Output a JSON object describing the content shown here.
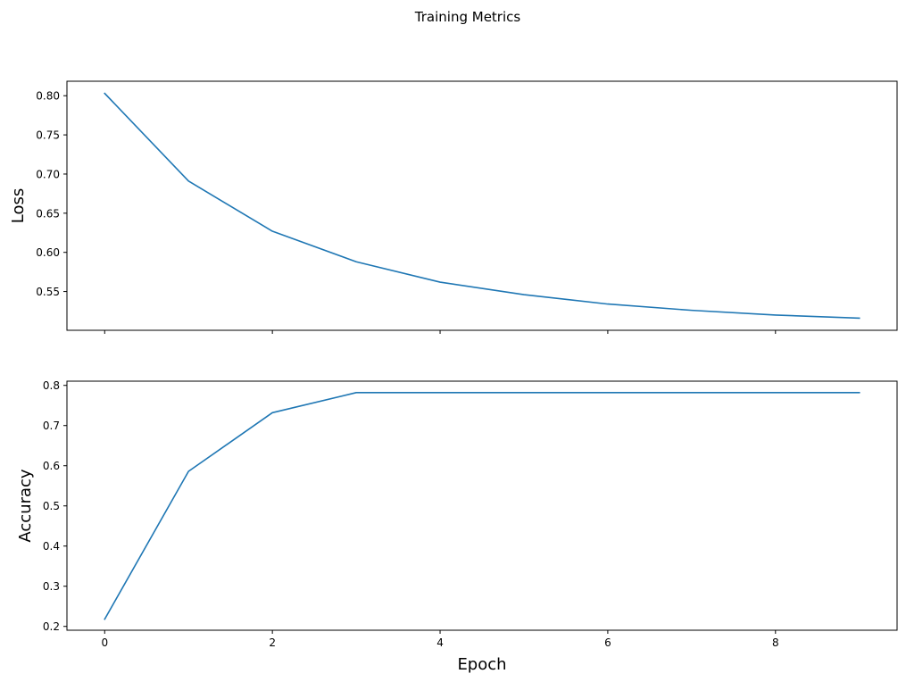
{
  "figure": {
    "suptitle": "Training Metrics"
  },
  "colors": {
    "line": "#1f77b4"
  },
  "chart_data": [
    {
      "type": "line",
      "title": "",
      "xlabel": "",
      "ylabel": "Loss",
      "xlim": [
        -0.45,
        9.45
      ],
      "ylim": [
        0.5005,
        0.8185
      ],
      "xticks": [
        0,
        2,
        4,
        6,
        8
      ],
      "xtick_labels": [
        "",
        "",
        "",
        "",
        ""
      ],
      "yticks": [
        0.55,
        0.6,
        0.65,
        0.7,
        0.75,
        0.8
      ],
      "ytick_labels": [
        "0.55",
        "0.60",
        "0.65",
        "0.70",
        "0.75",
        "0.80"
      ],
      "grid": false,
      "x": [
        0,
        1,
        2,
        3,
        4,
        5,
        6,
        7,
        8,
        9
      ],
      "series": [
        {
          "values": [
            0.803,
            0.691,
            0.627,
            0.588,
            0.562,
            0.546,
            0.534,
            0.526,
            0.52,
            0.516
          ]
        }
      ]
    },
    {
      "type": "line",
      "title": "",
      "xlabel": "Epoch",
      "ylabel": "Accuracy",
      "xlim": [
        -0.45,
        9.45
      ],
      "ylim": [
        0.1905,
        0.8105
      ],
      "xticks": [
        0,
        2,
        4,
        6,
        8
      ],
      "xtick_labels": [
        "0",
        "2",
        "4",
        "6",
        "8"
      ],
      "yticks": [
        0.2,
        0.3,
        0.4,
        0.5,
        0.6,
        0.7,
        0.8
      ],
      "ytick_labels": [
        "0.2",
        "0.3",
        "0.4",
        "0.5",
        "0.6",
        "0.7",
        "0.8"
      ],
      "grid": false,
      "x": [
        0,
        1,
        2,
        3,
        4,
        5,
        6,
        7,
        8,
        9
      ],
      "series": [
        {
          "values": [
            0.218,
            0.586,
            0.732,
            0.782,
            0.782,
            0.782,
            0.782,
            0.782,
            0.782,
            0.782
          ]
        }
      ]
    }
  ]
}
